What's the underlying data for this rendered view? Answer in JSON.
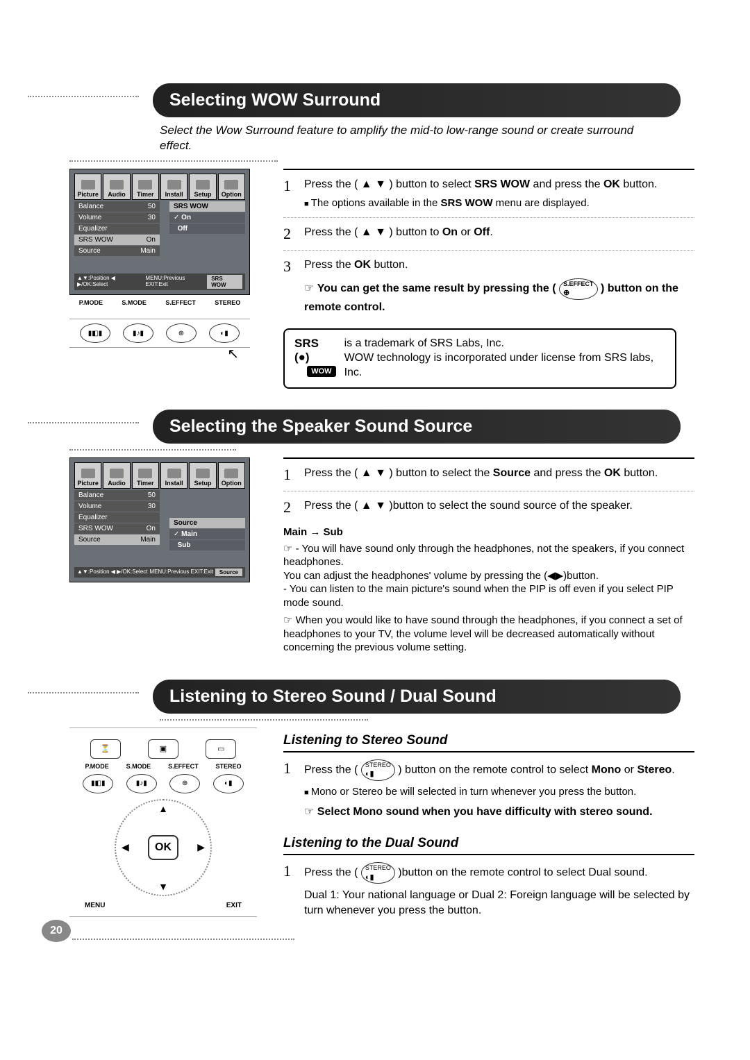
{
  "page_number": "20",
  "osd_tabs": [
    "Picture",
    "Audio",
    "Timer",
    "Install",
    "Setup",
    "Option"
  ],
  "section1": {
    "title": "Selecting WOW Surround",
    "intro": "Select the Wow Surround feature to amplify the mid-to low-range sound or create surround effect.",
    "osd": {
      "rows": [
        {
          "label": "Balance",
          "val": "50"
        },
        {
          "label": "Volume",
          "val": "30"
        },
        {
          "label": "Equalizer",
          "val": ""
        },
        {
          "label": "SRS WOW",
          "val": "On",
          "hl": true
        },
        {
          "label": "Source",
          "val": "Main"
        }
      ],
      "sub_title": "SRS WOW",
      "subs": [
        "On",
        "Off"
      ],
      "sub_checked": 0,
      "foot_left": "▲▼:Position  ◀ ▶/OK:Select",
      "foot_mid": "MENU:Previous  EXIT:Exit",
      "foot_chip": "SRS WOW"
    },
    "remote_labels": [
      "P.MODE",
      "S.MODE",
      "S.EFFECT",
      "STEREO"
    ],
    "steps": [
      {
        "n": "1",
        "body": "Press the ( ▲ ▼ ) button to select <b>SRS WOW</b> and press the <b>OK</b> button.",
        "sub": "The options available in the <b>SRS WOW</b> menu are displayed."
      },
      {
        "n": "2",
        "body": "Press the ( ▲ ▼ ) button to <b>On</b> or <b>Off</b>."
      },
      {
        "n": "3",
        "body": "Press the <b>OK</b> button.",
        "note": "You can get the same result by pressing the ( <span class=\"iconbtn\"><span class=\"tiny\">S.EFFECT</span>⊕</span> ) button on the remote control."
      }
    ],
    "box": {
      "srs": "SRS (●)",
      "wow": "WOW",
      "text1": "is a trademark of SRS Labs, Inc.",
      "text2": "WOW technology is incorporated under license from SRS labs, Inc."
    }
  },
  "section2": {
    "title": "Selecting the Speaker Sound Source",
    "osd": {
      "rows": [
        {
          "label": "Balance",
          "val": "50"
        },
        {
          "label": "Volume",
          "val": "30"
        },
        {
          "label": "Equalizer",
          "val": ""
        },
        {
          "label": "SRS WOW",
          "val": "On"
        },
        {
          "label": "Source",
          "val": "Main",
          "hl": true
        }
      ],
      "sub_title": "Source",
      "subs": [
        "Main",
        "Sub"
      ],
      "sub_checked": 0,
      "foot_left": "▲▼:Position  ◀ ▶/OK:Select",
      "foot_mid": "MENU:Previous  EXIT:Exit",
      "foot_chip": "Source"
    },
    "steps": [
      {
        "n": "1",
        "body": "Press the ( ▲ ▼ ) button to select  the <b>Source</b> and press the <b>OK</b> button."
      },
      {
        "n": "2",
        "body": "Press the ( ▲ ▼ )button to select the sound source of the speaker."
      }
    ],
    "main_sub": "Main → Sub",
    "notes": [
      "- You will have sound only through the headphones, not the speakers, if you connect headphones.<br>You can adjust the headphones' volume by pressing the (◀▶)button.<br>- You can listen to the main picture's sound when the PIP is off even if you select PIP mode sound.",
      "When you would like to have sound through the headphones, if you connect a set of headphones to your TV, the volume level will be decreased automatically without concerning the previous volume setting."
    ]
  },
  "section3": {
    "title": "Listening to Stereo Sound / Dual Sound",
    "sub1_title": "Listening to Stereo Sound",
    "sub1_steps": [
      {
        "n": "1",
        "body": "Press the ( <span class=\"iconbtn\"><span class=\"tiny\">STEREO</span>◐▮</span> ) button on the remote control to select <b>Mono</b> or <b>Stereo</b>.",
        "sub": "Mono or Stereo be will selected in turn whenever you press the button.",
        "note": "Select Mono sound when you have difficulty with stereo sound."
      }
    ],
    "sub2_title": "Listening to the Dual Sound",
    "sub2_steps": [
      {
        "n": "1",
        "body": "Press the ( <span class=\"iconbtn\"><span class=\"tiny\">STEREO</span>◐▮</span> )button on the remote control to select Dual sound.",
        "plain": "Dual 1: Your national language or Dual 2: Foreign language will be selected by turn whenever you press the button."
      }
    ],
    "remote_labels": [
      "P.MODE",
      "S.MODE",
      "S.EFFECT",
      "STEREO"
    ],
    "menu": "MENU",
    "exit": "EXIT",
    "ok": "OK"
  }
}
